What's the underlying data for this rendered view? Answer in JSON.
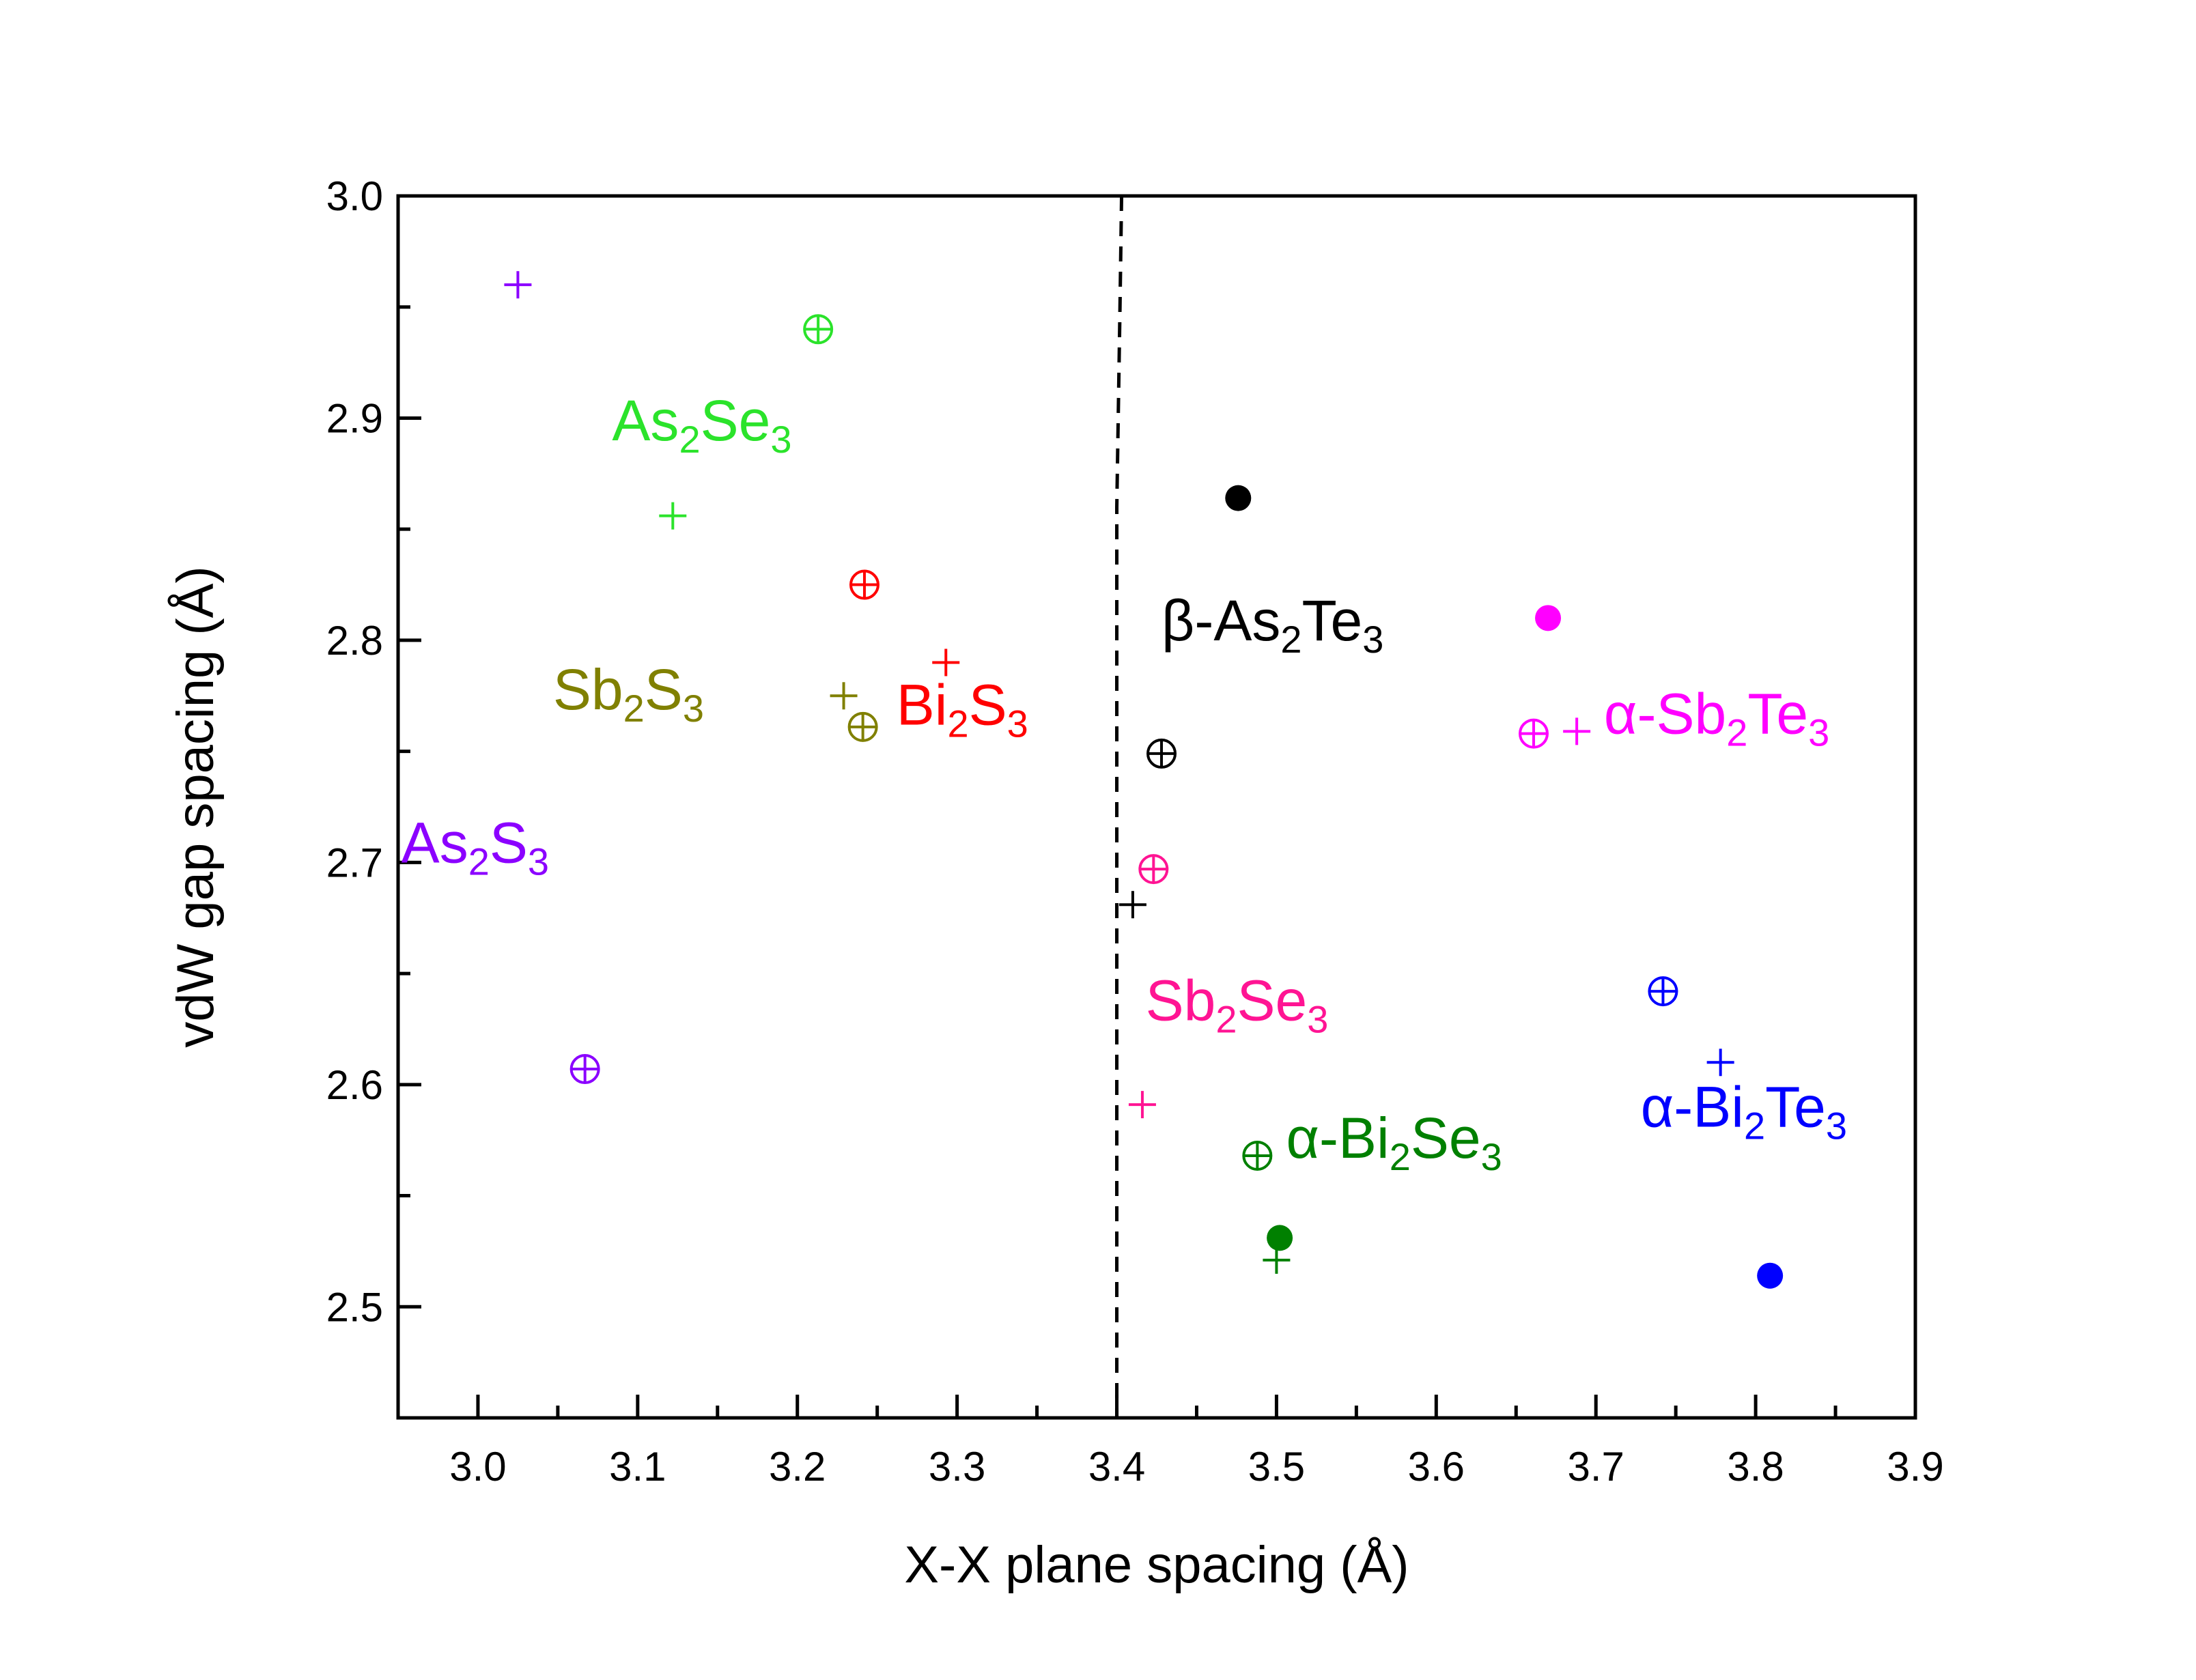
{
  "chart_data": {
    "type": "scatter",
    "xlabel": "X-X plane spacing (Å)",
    "ylabel": "vdW gap spacing (Å)",
    "xlim": [
      2.95,
      3.9
    ],
    "ylim": [
      2.45,
      3.0
    ],
    "xticks": [
      "3.0",
      "3.1",
      "3.2",
      "3.3",
      "3.4",
      "3.5",
      "3.6",
      "3.7",
      "3.8",
      "3.9"
    ],
    "yticks": [
      "2.5",
      "2.6",
      "2.7",
      "2.8",
      "2.9",
      "3.0"
    ],
    "grid": false,
    "divider": {
      "style": "dashed",
      "x": [
        3.403,
        3.402,
        3.4,
        3.4
      ],
      "y": [
        3.0,
        2.95,
        2.86,
        2.45
      ]
    },
    "marker_types": [
      "plus",
      "circle-plus",
      "filled-circle"
    ],
    "series": [
      {
        "label": "As2S3",
        "color": "#8b00ff",
        "points": [
          {
            "marker": "plus",
            "x": 3.025,
            "y": 2.96
          },
          {
            "marker": "circle-plus",
            "x": 3.067,
            "y": 2.607
          }
        ]
      },
      {
        "label": "As2Se3",
        "color": "#2be32b",
        "points": [
          {
            "marker": "circle-plus",
            "x": 3.213,
            "y": 2.94
          },
          {
            "marker": "plus",
            "x": 3.122,
            "y": 2.856
          }
        ]
      },
      {
        "label": "Sb2S3",
        "color": "#808000",
        "points": [
          {
            "marker": "plus",
            "x": 3.229,
            "y": 2.775
          },
          {
            "marker": "circle-plus",
            "x": 3.241,
            "y": 2.761
          }
        ]
      },
      {
        "label": "Bi2S3",
        "color": "#ff0000",
        "points": [
          {
            "marker": "circle-plus",
            "x": 3.242,
            "y": 2.825
          },
          {
            "marker": "plus",
            "x": 3.293,
            "y": 2.79
          }
        ]
      },
      {
        "label": "β-As2Te3",
        "color": "#000000",
        "points": [
          {
            "marker": "filled-circle",
            "x": 3.476,
            "y": 2.864
          },
          {
            "marker": "circle-plus",
            "x": 3.428,
            "y": 2.749
          },
          {
            "marker": "plus",
            "x": 3.41,
            "y": 2.681
          }
        ]
      },
      {
        "label": "Sb2Se3",
        "color": "#ff1493",
        "points": [
          {
            "marker": "circle-plus",
            "x": 3.423,
            "y": 2.697
          },
          {
            "marker": "plus",
            "x": 3.416,
            "y": 2.591
          }
        ]
      },
      {
        "label": "α-Sb2Te3",
        "color": "#ff00ff",
        "points": [
          {
            "marker": "filled-circle",
            "x": 3.67,
            "y": 2.81
          },
          {
            "marker": "circle-plus",
            "x": 3.661,
            "y": 2.758
          },
          {
            "marker": "plus",
            "x": 3.688,
            "y": 2.759
          }
        ]
      },
      {
        "label": "α-Bi2Se3",
        "color": "#008000",
        "points": [
          {
            "marker": "circle-plus",
            "x": 3.488,
            "y": 2.568
          },
          {
            "marker": "filled-circle",
            "x": 3.502,
            "y": 2.531
          },
          {
            "marker": "plus",
            "x": 3.5,
            "y": 2.521
          }
        ]
      },
      {
        "label": "α-Bi2Te3",
        "color": "#0000ff",
        "points": [
          {
            "marker": "circle-plus",
            "x": 3.742,
            "y": 2.642
          },
          {
            "marker": "plus",
            "x": 3.778,
            "y": 2.61
          },
          {
            "marker": "filled-circle",
            "x": 3.809,
            "y": 2.514
          }
        ]
      }
    ],
    "annotations": [
      {
        "series": "As2S3",
        "prefix": "",
        "parts": [
          [
            "As",
            "n"
          ],
          [
            "2",
            "s"
          ],
          [
            "S",
            "n"
          ],
          [
            "3",
            "s"
          ]
        ],
        "x": 2.952,
        "y": 2.7,
        "anchor": "start"
      },
      {
        "series": "As2Se3",
        "prefix": "",
        "parts": [
          [
            "As",
            "n"
          ],
          [
            "2",
            "s"
          ],
          [
            "Se",
            "n"
          ],
          [
            "3",
            "s"
          ]
        ],
        "x": 3.084,
        "y": 2.89,
        "anchor": "start"
      },
      {
        "series": "Sb2S3",
        "prefix": "",
        "parts": [
          [
            "Sb",
            "n"
          ],
          [
            "2",
            "s"
          ],
          [
            "S",
            "n"
          ],
          [
            "3",
            "s"
          ]
        ],
        "x": 3.047,
        "y": 2.769,
        "anchor": "start"
      },
      {
        "series": "Bi2S3",
        "prefix": "",
        "parts": [
          [
            "Bi",
            "n"
          ],
          [
            "2",
            "s"
          ],
          [
            "S",
            "n"
          ],
          [
            "3",
            "s"
          ]
        ],
        "x": 3.262,
        "y": 2.762,
        "anchor": "start"
      },
      {
        "series": "β-As2Te3",
        "prefix": "β-",
        "parts": [
          [
            "As",
            "n"
          ],
          [
            "2",
            "s"
          ],
          [
            "Te",
            "n"
          ],
          [
            "3",
            "s"
          ]
        ],
        "x": 3.428,
        "y": 2.8,
        "anchor": "start"
      },
      {
        "series": "Sb2Se3",
        "prefix": "",
        "parts": [
          [
            "Sb",
            "n"
          ],
          [
            "2",
            "s"
          ],
          [
            "Se",
            "n"
          ],
          [
            "3",
            "s"
          ]
        ],
        "x": 3.418,
        "y": 2.629,
        "anchor": "start"
      },
      {
        "series": "α-Sb2Te3",
        "prefix": "α-",
        "parts": [
          [
            "Sb",
            "n"
          ],
          [
            "2",
            "s"
          ],
          [
            "Te",
            "n"
          ],
          [
            "3",
            "s"
          ]
        ],
        "x": 3.705,
        "y": 2.758,
        "anchor": "start"
      },
      {
        "series": "α-Bi2Se3",
        "prefix": "α-",
        "parts": [
          [
            "Bi",
            "n"
          ],
          [
            "2",
            "s"
          ],
          [
            "Se",
            "n"
          ],
          [
            "3",
            "s"
          ]
        ],
        "x": 3.506,
        "y": 2.567,
        "anchor": "start"
      },
      {
        "series": "α-Bi2Te3",
        "prefix": "α-",
        "parts": [
          [
            "Bi",
            "n"
          ],
          [
            "2",
            "s"
          ],
          [
            "Te",
            "n"
          ],
          [
            "3",
            "s"
          ]
        ],
        "x": 3.728,
        "y": 2.581,
        "anchor": "start"
      }
    ]
  }
}
